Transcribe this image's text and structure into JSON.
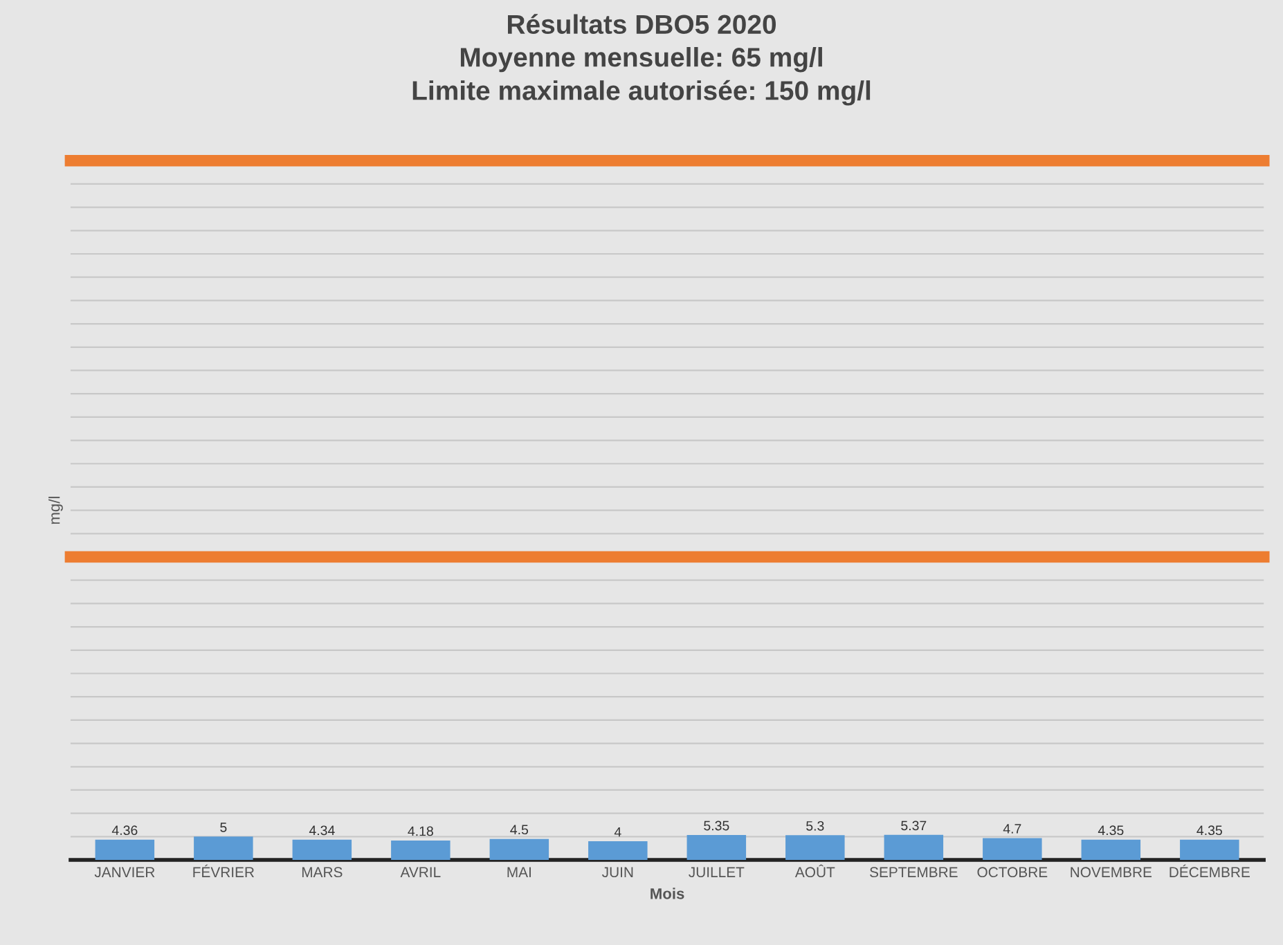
{
  "chart_data": {
    "type": "bar",
    "title": "Résultats DBO5 2020\nMoyenne mensuelle: 65 mg/l\nLimite maximale autorisée: 150 mg/l",
    "xlabel": "Mois",
    "ylabel": "mg/l",
    "categories": [
      "JANVIER",
      "FÉVRIER",
      "MARS",
      "AVRIL",
      "MAI",
      "JUIN",
      "JUILLET",
      "AOÛT",
      "SEPTEMBRE",
      "OCTOBRE",
      "NOVEMBRE",
      "DÉCEMBRE"
    ],
    "values": [
      4.36,
      5,
      4.34,
      4.18,
      4.5,
      4,
      5.35,
      5.3,
      5.37,
      4.7,
      4.35,
      4.35
    ],
    "color": "#5b9bd5",
    "data_labels": true,
    "ylim": [
      0,
      150
    ],
    "yticks": [
      {
        "value": 0,
        "label": null
      },
      {
        "value": 5,
        "label": null
      },
      {
        "value": 10,
        "label": null
      },
      {
        "value": 15,
        "label": null
      },
      {
        "value": 20,
        "label": null
      },
      {
        "value": 25,
        "label": null
      },
      {
        "value": 30,
        "label": null
      },
      {
        "value": 35,
        "label": null
      },
      {
        "value": 40,
        "label": null
      },
      {
        "value": 45,
        "label": null
      },
      {
        "value": 50,
        "label": null
      },
      {
        "value": 55,
        "label": null
      },
      {
        "value": 60,
        "label": null
      },
      {
        "value": 65,
        "label": null
      },
      {
        "value": 70,
        "label": null
      },
      {
        "value": 75,
        "label": null
      },
      {
        "value": 80,
        "label": null
      },
      {
        "value": 85,
        "label": null
      },
      {
        "value": 90,
        "label": null
      },
      {
        "value": 95,
        "label": null
      },
      {
        "value": 100,
        "label": null
      },
      {
        "value": 105,
        "label": null
      },
      {
        "value": 110,
        "label": null
      },
      {
        "value": 115,
        "label": null
      },
      {
        "value": 120,
        "label": null
      },
      {
        "value": 125,
        "label": null
      },
      {
        "value": 130,
        "label": null
      },
      {
        "value": 135,
        "label": null
      },
      {
        "value": 140,
        "label": null
      },
      {
        "value": 145,
        "label": null
      },
      {
        "value": 150,
        "label": null
      }
    ],
    "tick_labels": "x",
    "grid": "y",
    "ref_lines": [
      {
        "axis": "y",
        "value": 65,
        "color": "#ed7d31"
      },
      {
        "axis": "y",
        "value": 150,
        "color": "#ed7d31"
      }
    ]
  }
}
